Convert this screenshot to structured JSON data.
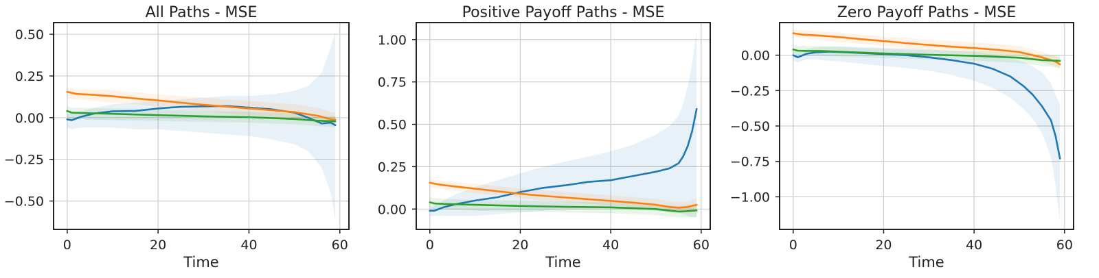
{
  "chart_data": [
    {
      "type": "line",
      "title": "All Paths - MSE",
      "xlabel": "Time",
      "ylabel": "",
      "xlim": [
        -3,
        62
      ],
      "ylim": [
        -0.67,
        0.57
      ],
      "xticks": [
        0,
        20,
        40,
        60
      ],
      "xtick_labels": [
        "0",
        "20",
        "40",
        "60"
      ],
      "yticks": [
        -0.5,
        -0.25,
        0,
        0.25,
        0.5
      ],
      "ytick_labels": [
        "−0.50",
        "−0.25",
        "0.00",
        "0.25",
        "0.50"
      ],
      "grid": true,
      "series": [
        {
          "color": "#1f77b4",
          "band_color": "#1f77b4",
          "x": [
            0,
            1,
            3,
            6,
            10,
            15,
            20,
            25,
            30,
            35,
            40,
            45,
            50,
            53,
            56,
            58,
            59
          ],
          "y": [
            -0.01,
            -0.015,
            0.005,
            0.025,
            0.038,
            0.04,
            0.055,
            0.065,
            0.068,
            0.07,
            0.06,
            0.05,
            0.03,
            0.0,
            -0.035,
            -0.03,
            -0.045
          ],
          "band_lower": [
            -0.06,
            -0.07,
            -0.06,
            -0.06,
            -0.06,
            -0.07,
            -0.07,
            -0.08,
            -0.09,
            -0.1,
            -0.11,
            -0.13,
            -0.16,
            -0.2,
            -0.3,
            -0.45,
            -0.62
          ],
          "band_upper": [
            0.02,
            0.03,
            0.04,
            0.06,
            0.08,
            0.09,
            0.1,
            0.11,
            0.12,
            0.13,
            0.13,
            0.14,
            0.16,
            0.19,
            0.27,
            0.42,
            0.52
          ]
        },
        {
          "color": "#ff7f0e",
          "band_color": "#ff7f0e",
          "x": [
            0,
            2,
            5,
            10,
            15,
            20,
            25,
            30,
            35,
            40,
            45,
            50,
            55,
            58,
            59
          ],
          "y": [
            0.155,
            0.142,
            0.138,
            0.128,
            0.115,
            0.103,
            0.09,
            0.077,
            0.066,
            0.055,
            0.045,
            0.033,
            0.012,
            -0.01,
            -0.012
          ],
          "band_lower": [
            0.12,
            0.11,
            0.105,
            0.09,
            0.08,
            0.065,
            0.05,
            0.04,
            0.025,
            0.015,
            0.005,
            -0.01,
            -0.03,
            -0.045,
            -0.05
          ],
          "band_upper": [
            0.18,
            0.17,
            0.17,
            0.165,
            0.15,
            0.14,
            0.13,
            0.12,
            0.11,
            0.1,
            0.09,
            0.08,
            0.06,
            0.035,
            0.03
          ]
        },
        {
          "color": "#2ca02c",
          "band_color": "#2ca02c",
          "x": [
            0,
            1,
            3,
            10,
            20,
            30,
            40,
            50,
            55,
            59
          ],
          "y": [
            0.04,
            0.03,
            0.028,
            0.023,
            0.015,
            0.008,
            0.003,
            -0.008,
            -0.018,
            -0.022
          ],
          "band_lower": [
            0.0,
            -0.01,
            -0.01,
            -0.015,
            -0.02,
            -0.025,
            -0.03,
            -0.04,
            -0.05,
            -0.06
          ],
          "band_upper": [
            0.07,
            0.06,
            0.06,
            0.055,
            0.05,
            0.04,
            0.035,
            0.025,
            0.015,
            0.01
          ]
        }
      ]
    },
    {
      "type": "line",
      "title": "Positive Payoff Paths - MSE",
      "xlabel": "Time",
      "ylabel": "",
      "xlim": [
        -3,
        62
      ],
      "ylim": [
        -0.12,
        1.1
      ],
      "xticks": [
        0,
        20,
        40,
        60
      ],
      "xtick_labels": [
        "0",
        "20",
        "40",
        "60"
      ],
      "yticks": [
        0,
        0.25,
        0.5,
        0.75,
        1.0
      ],
      "ytick_labels": [
        "0.00",
        "0.25",
        "0.50",
        "0.75",
        "1.00"
      ],
      "grid": true,
      "series": [
        {
          "color": "#1f77b4",
          "band_color": "#1f77b4",
          "x": [
            0,
            1,
            3,
            6,
            10,
            15,
            20,
            25,
            30,
            35,
            40,
            45,
            50,
            53,
            55,
            56,
            57,
            58,
            59
          ],
          "y": [
            -0.01,
            -0.01,
            0.01,
            0.03,
            0.05,
            0.07,
            0.1,
            0.125,
            0.14,
            0.16,
            0.17,
            0.195,
            0.22,
            0.24,
            0.27,
            0.31,
            0.37,
            0.46,
            0.59
          ],
          "band_lower": [
            -0.04,
            -0.04,
            -0.04,
            -0.04,
            -0.04,
            -0.03,
            -0.02,
            -0.01,
            0.0,
            0.0,
            0.0,
            0.0,
            -0.01,
            -0.02,
            -0.02,
            -0.03,
            -0.04,
            -0.05,
            -0.05
          ],
          "band_upper": [
            0.01,
            0.02,
            0.05,
            0.09,
            0.13,
            0.17,
            0.21,
            0.25,
            0.28,
            0.31,
            0.34,
            0.38,
            0.44,
            0.49,
            0.55,
            0.62,
            0.72,
            0.86,
            1.05
          ]
        },
        {
          "color": "#ff7f0e",
          "band_color": "#ff7f0e",
          "x": [
            0,
            2,
            5,
            10,
            15,
            20,
            25,
            30,
            35,
            40,
            45,
            50,
            53,
            55,
            57,
            59
          ],
          "y": [
            0.155,
            0.145,
            0.135,
            0.12,
            0.105,
            0.09,
            0.078,
            0.068,
            0.058,
            0.048,
            0.038,
            0.025,
            0.012,
            0.008,
            0.012,
            0.025
          ],
          "band_lower": [
            0.13,
            0.12,
            0.11,
            0.095,
            0.08,
            0.065,
            0.05,
            0.04,
            0.03,
            0.02,
            0.01,
            -0.005,
            -0.02,
            -0.025,
            -0.02,
            -0.01
          ],
          "band_upper": [
            0.18,
            0.17,
            0.16,
            0.15,
            0.135,
            0.12,
            0.11,
            0.1,
            0.09,
            0.08,
            0.07,
            0.06,
            0.045,
            0.04,
            0.045,
            0.06
          ]
        },
        {
          "color": "#2ca02c",
          "band_color": "#2ca02c",
          "x": [
            0,
            1,
            3,
            10,
            20,
            30,
            40,
            50,
            55,
            57,
            59
          ],
          "y": [
            0.04,
            0.033,
            0.03,
            0.025,
            0.018,
            0.013,
            0.01,
            0.0,
            -0.015,
            -0.012,
            -0.008
          ],
          "band_lower": [
            0.01,
            0.0,
            0.0,
            -0.01,
            -0.015,
            -0.02,
            -0.025,
            -0.035,
            -0.05,
            -0.05,
            -0.045
          ],
          "band_upper": [
            0.07,
            0.065,
            0.06,
            0.055,
            0.05,
            0.045,
            0.04,
            0.03,
            0.015,
            0.02,
            0.025
          ]
        }
      ]
    },
    {
      "type": "line",
      "title": "Zero Payoff Paths - MSE",
      "xlabel": "Time",
      "ylabel": "",
      "xlim": [
        -3,
        62
      ],
      "ylim": [
        -1.23,
        0.23
      ],
      "xticks": [
        0,
        20,
        40,
        60
      ],
      "xtick_labels": [
        "0",
        "20",
        "40",
        "60"
      ],
      "yticks": [
        -1.0,
        -0.75,
        -0.5,
        -0.25,
        0,
        0.25
      ],
      "ytick_labels": [
        "−1.00",
        "−0.75",
        "−0.50",
        "−0.25",
        "0.00",
        ""
      ],
      "grid": true,
      "series": [
        {
          "color": "#1f77b4",
          "band_color": "#1f77b4",
          "x": [
            0,
            1,
            3,
            5,
            8,
            12,
            18,
            25,
            30,
            35,
            40,
            44,
            48,
            51,
            53,
            55,
            57,
            58,
            59
          ],
          "y": [
            0.0,
            -0.015,
            0.01,
            0.02,
            0.025,
            0.02,
            0.01,
            0.0,
            -0.015,
            -0.035,
            -0.06,
            -0.095,
            -0.15,
            -0.22,
            -0.28,
            -0.36,
            -0.46,
            -0.57,
            -0.73
          ],
          "band_lower": [
            -0.04,
            -0.05,
            -0.03,
            -0.03,
            -0.04,
            -0.05,
            -0.07,
            -0.09,
            -0.11,
            -0.14,
            -0.18,
            -0.23,
            -0.3,
            -0.38,
            -0.45,
            -0.55,
            -0.72,
            -0.92,
            -1.18
          ],
          "band_upper": [
            0.03,
            0.03,
            0.045,
            0.055,
            0.06,
            0.06,
            0.055,
            0.05,
            0.04,
            0.03,
            0.02,
            0.005,
            -0.02,
            -0.05,
            -0.08,
            -0.12,
            -0.2,
            -0.28,
            -0.35
          ]
        },
        {
          "color": "#ff7f0e",
          "band_color": "#ff7f0e",
          "x": [
            0,
            2,
            5,
            10,
            15,
            20,
            25,
            30,
            35,
            40,
            45,
            50,
            55,
            58,
            59
          ],
          "y": [
            0.155,
            0.145,
            0.14,
            0.128,
            0.113,
            0.1,
            0.085,
            0.072,
            0.06,
            0.05,
            0.038,
            0.022,
            -0.015,
            -0.045,
            -0.065
          ],
          "band_lower": [
            0.13,
            0.12,
            0.11,
            0.095,
            0.08,
            0.065,
            0.05,
            0.035,
            0.025,
            0.015,
            0.0,
            -0.015,
            -0.05,
            -0.08,
            -0.1
          ],
          "band_upper": [
            0.18,
            0.175,
            0.17,
            0.16,
            0.145,
            0.13,
            0.12,
            0.11,
            0.1,
            0.09,
            0.08,
            0.065,
            0.025,
            -0.005,
            -0.02
          ]
        },
        {
          "color": "#2ca02c",
          "band_color": "#2ca02c",
          "x": [
            0,
            1,
            3,
            6,
            10,
            20,
            30,
            40,
            50,
            55,
            59
          ],
          "y": [
            0.04,
            0.032,
            0.03,
            0.03,
            0.025,
            0.012,
            0.003,
            -0.005,
            -0.018,
            -0.035,
            -0.04
          ],
          "band_lower": [
            0.01,
            0.0,
            -0.005,
            -0.005,
            -0.01,
            -0.02,
            -0.03,
            -0.04,
            -0.055,
            -0.075,
            -0.09
          ],
          "band_upper": [
            0.07,
            0.065,
            0.065,
            0.065,
            0.06,
            0.045,
            0.035,
            0.03,
            0.02,
            0.005,
            0.0
          ]
        }
      ]
    }
  ]
}
